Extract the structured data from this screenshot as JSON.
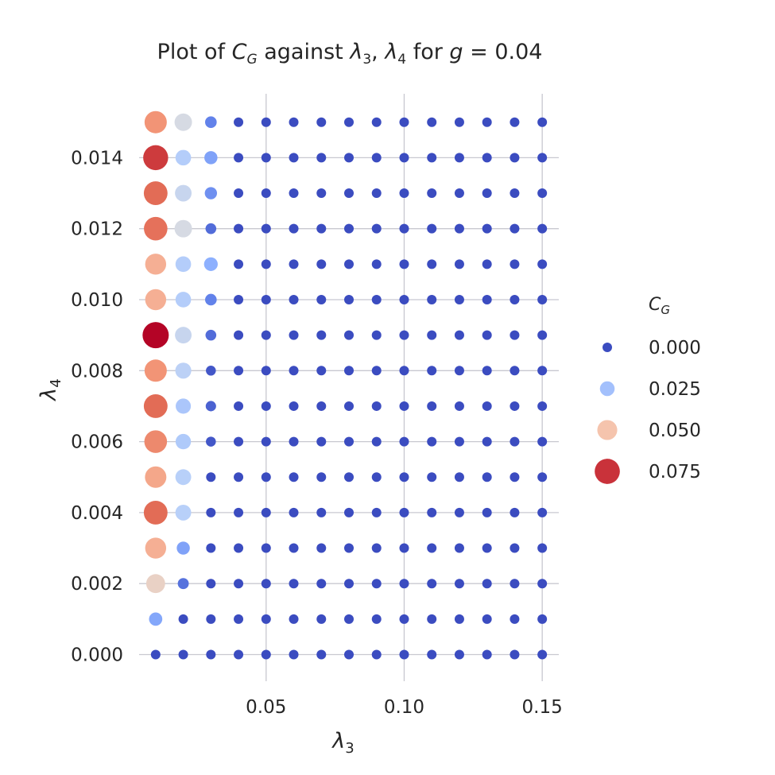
{
  "chart_data": {
    "type": "scatter",
    "title": "Plot of C_G against λ3, λ4 for g = 0.04",
    "title_parts": {
      "prefix": "Plot of ",
      "cvar": "C",
      "csub": "G",
      "mid": " against ",
      "l3": "λ",
      "l3sub": "3",
      "sep": ", ",
      "l4": "λ",
      "l4sub": "4",
      "for": " for ",
      "gvar": "g",
      "eq": " = 0.04"
    },
    "xlabel": {
      "sym": "λ",
      "sub": "3"
    },
    "ylabel": {
      "sym": "λ",
      "sub": "4"
    },
    "xlim": [
      0.004,
      0.156
    ],
    "ylim": [
      -0.00075,
      0.0158
    ],
    "xticks": [
      0.05,
      0.1,
      0.15
    ],
    "xtick_labels": [
      "0.05",
      "0.10",
      "0.15"
    ],
    "yticks": [
      0.0,
      0.002,
      0.004,
      0.006,
      0.008,
      0.01,
      0.012,
      0.014
    ],
    "ytick_labels": [
      "0.000",
      "0.002",
      "0.004",
      "0.006",
      "0.008",
      "0.010",
      "0.012",
      "0.014"
    ],
    "grid": true,
    "hue_size_variable": "C_G",
    "colormap": "coolwarm",
    "color_range": [
      0,
      0.08
    ],
    "x": [
      0.01,
      0.02,
      0.03,
      0.04,
      0.05,
      0.06,
      0.07,
      0.08,
      0.09,
      0.1,
      0.11,
      0.12,
      0.13,
      0.14,
      0.15
    ],
    "y": [
      0.0,
      0.001,
      0.002,
      0.003,
      0.004,
      0.005,
      0.006,
      0.007,
      0.008,
      0.009,
      0.01,
      0.011,
      0.012,
      0.013,
      0.014,
      0.015
    ],
    "values_note_rows": "values[i][j] = C_G at y[i], x[j]",
    "values": [
      [
        0.0,
        0.0,
        0.0,
        0,
        0,
        0,
        0,
        0,
        0,
        0,
        0,
        0,
        0,
        0,
        0
      ],
      [
        0.018,
        0.0,
        0.0,
        0,
        0,
        0,
        0,
        0,
        0,
        0,
        0,
        0,
        0,
        0,
        0
      ],
      [
        0.045,
        0.007,
        0.0,
        0,
        0,
        0,
        0,
        0,
        0,
        0,
        0,
        0,
        0,
        0,
        0
      ],
      [
        0.055,
        0.017,
        0.0,
        0,
        0,
        0,
        0,
        0,
        0,
        0,
        0,
        0,
        0,
        0,
        0
      ],
      [
        0.068,
        0.03,
        0.0,
        0,
        0,
        0,
        0,
        0,
        0,
        0,
        0,
        0,
        0,
        0,
        0
      ],
      [
        0.057,
        0.03,
        0.0,
        0,
        0,
        0,
        0,
        0,
        0,
        0,
        0,
        0,
        0,
        0,
        0
      ],
      [
        0.063,
        0.028,
        0.002,
        0,
        0,
        0,
        0,
        0,
        0,
        0,
        0,
        0,
        0,
        0,
        0
      ],
      [
        0.068,
        0.027,
        0.004,
        0,
        0,
        0,
        0,
        0,
        0,
        0,
        0,
        0,
        0,
        0,
        0
      ],
      [
        0.061,
        0.031,
        0.002,
        0,
        0,
        0,
        0,
        0,
        0,
        0,
        0,
        0,
        0,
        0,
        0
      ],
      [
        0.08,
        0.034,
        0.006,
        0,
        0,
        0,
        0,
        0,
        0,
        0,
        0,
        0,
        0,
        0,
        0
      ],
      [
        0.055,
        0.029,
        0.01,
        0,
        0,
        0,
        0,
        0,
        0,
        0,
        0,
        0,
        0,
        0,
        0
      ],
      [
        0.055,
        0.029,
        0.02,
        0,
        0,
        0,
        0,
        0,
        0,
        0,
        0,
        0,
        0,
        0,
        0
      ],
      [
        0.067,
        0.038,
        0.006,
        0,
        0,
        0,
        0,
        0,
        0,
        0,
        0,
        0,
        0,
        0,
        0
      ],
      [
        0.068,
        0.034,
        0.013,
        0,
        0,
        0,
        0,
        0,
        0,
        0,
        0,
        0,
        0,
        0,
        0
      ],
      [
        0.074,
        0.029,
        0.017,
        0,
        0,
        0,
        0,
        0,
        0,
        0,
        0,
        0,
        0,
        0,
        0
      ],
      [
        0.061,
        0.038,
        0.01,
        0,
        0,
        0,
        0,
        0,
        0,
        0,
        0,
        0,
        0,
        0,
        0
      ]
    ],
    "legend": {
      "placement": "right",
      "title": {
        "sym": "C",
        "sub": "G"
      },
      "entries": [
        {
          "label": "0.000",
          "value": 0.0
        },
        {
          "label": "0.025",
          "value": 0.025
        },
        {
          "label": "0.050",
          "value": 0.05
        },
        {
          "label": "0.075",
          "value": 0.075
        }
      ]
    }
  }
}
